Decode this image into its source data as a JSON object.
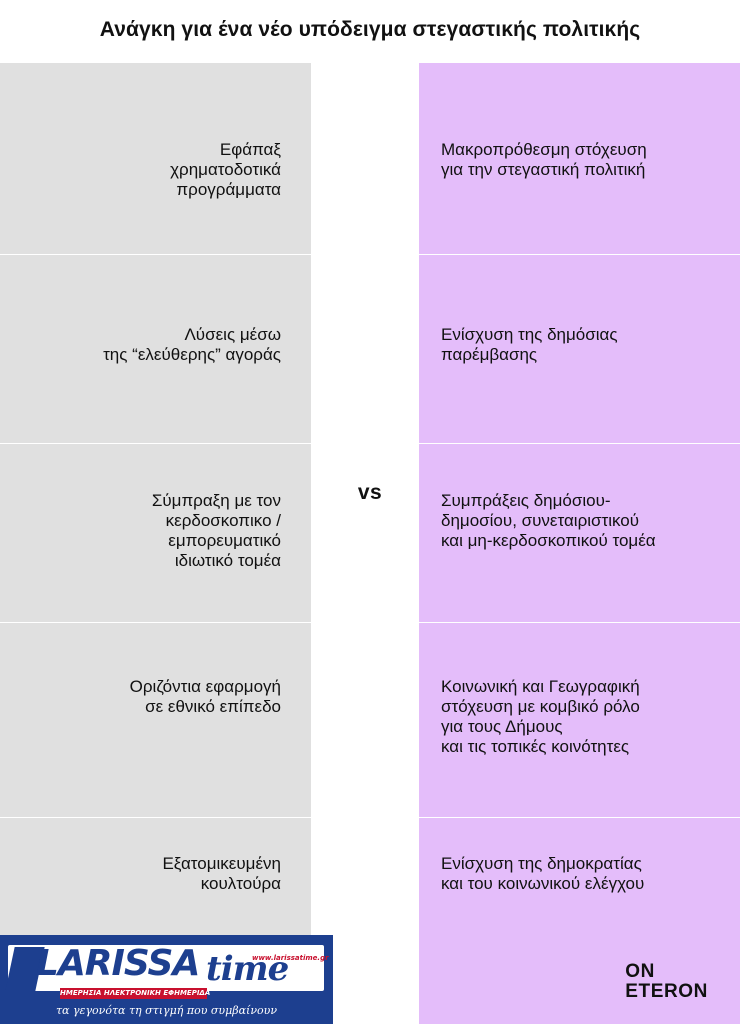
{
  "title": "Ανάγκη για ένα νέο υπόδειγμα στεγαστικής πολιτικής",
  "vs_label": "vs",
  "left_items": [
    "Εφάπαξ\nχρηματοδοτικά\nπρογράμματα",
    "Λύσεις μέσω\nτης “ελεύθερης” αγοράς",
    "Σύμπραξη με τον\nκερδοσκοπικο /\nεμπορευματικό\nιδιωτικό τομέα",
    "Οριζόντια εφαρμογή\nσε εθνικό επίπεδο",
    "Εξατομικευμένη\nκουλτούρα"
  ],
  "right_items": [
    "Μακροπρόθεσμη στόχευση\nγια την στεγαστική πολιτική",
    "Ενίσχυση της δημόσιας\n παρέμβασης",
    "Συμπράξεις δημόσιου-\nδημοσίου, συνεταιριστικού\nκαι μη-κερδοσκοπικού τομέα",
    "Κοινωνική και Γεωγραφική\nστόχευση με κομβικό ρόλο\nγια τους Δήμους\nκαι τις τοπικές κοινότητες",
    "Ενίσχυση της δημοκρατίας\nκαι του κοινωνικού ελέγχου"
  ],
  "brand": {
    "line1": "ON",
    "line2": "ETERON"
  },
  "logo": {
    "main": "LARISSA",
    "script": "time",
    "url": "www.larissatime.gr",
    "tagline": "ΗΜΕΡΗΣΙΑ ΗΛΕΚΤΡΟΝΙΚΗ ΕΦΗΜΕΡΙΔΑ",
    "slogan": "τα γεγονότα τη στιγμή που συμβαίνουν"
  },
  "colors": {
    "left_panel": "#e0e0e0",
    "right_panel": "#e4bdfa",
    "logo_blue": "#1d3f8f",
    "logo_red": "#c8102e"
  }
}
